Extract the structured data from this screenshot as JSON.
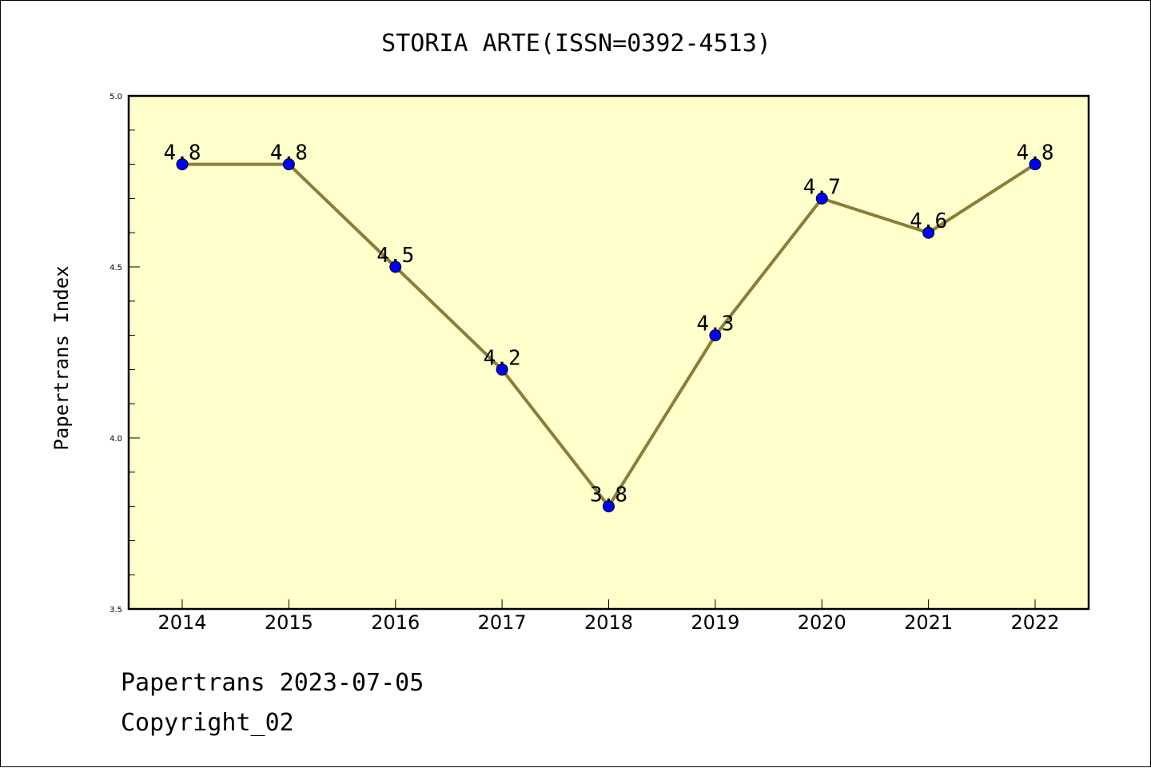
{
  "footer": {
    "line1": "Papertrans 2023-07-05",
    "line2": "Copyright_02"
  },
  "colors": {
    "plot_background": "#ffffcc",
    "line": "#8b7d3a",
    "marker": "#0000ff",
    "axes": "#000000"
  },
  "chart_data": {
    "type": "line",
    "title": "STORIA ARTE(ISSN=0392-4513)",
    "xlabel": "",
    "ylabel": "Papertrans Index",
    "categories": [
      "2014",
      "2015",
      "2016",
      "2017",
      "2018",
      "2019",
      "2020",
      "2021",
      "2022"
    ],
    "series": [
      {
        "values": [
          4.8,
          4.8,
          4.5,
          4.2,
          3.8,
          4.3,
          4.7,
          4.6,
          4.8
        ],
        "data_labels": [
          "4.8",
          "4.8",
          "4.5",
          "4.2",
          "3.8",
          "4.3",
          "4.7",
          "4.6",
          "4.8"
        ]
      }
    ],
    "ylim": [
      3.5,
      5.0
    ],
    "y_major_ticks": [
      3.5,
      4.0,
      4.5,
      5.0
    ],
    "y_tick_labels": [
      "3.5",
      "4.0",
      "4.5",
      "5.0"
    ],
    "y_minor_step": 0.1,
    "grid": false,
    "legend": "none"
  }
}
